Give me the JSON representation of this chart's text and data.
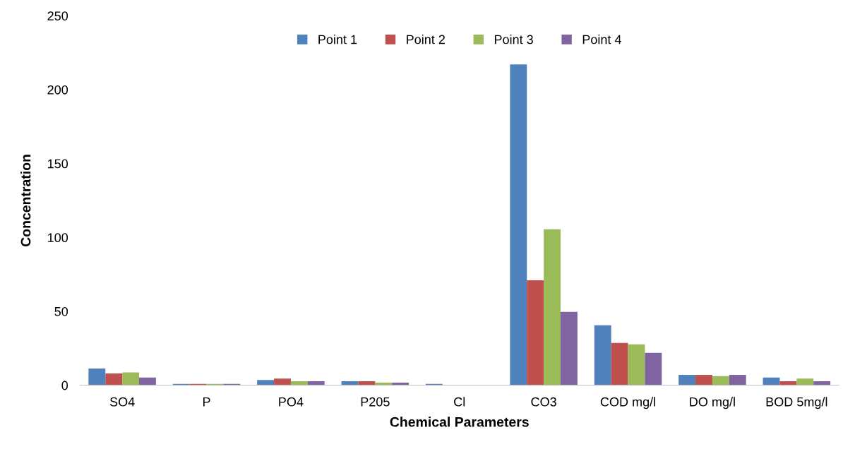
{
  "chart_data": {
    "type": "bar",
    "xlabel": "Chemical Parameters",
    "ylabel": "Concentration",
    "categories": [
      "SO4",
      "P",
      "PO4",
      "P205",
      "Cl",
      "CO3",
      "COD mg/l",
      "DO mg/l",
      "BOD 5mg/l"
    ],
    "series": [
      {
        "name": "Point 1",
        "color": "#4f81bd",
        "values": [
          11.3,
          0.9,
          3.6,
          2.7,
          0.9,
          217,
          40.6,
          7,
          5.2
        ]
      },
      {
        "name": "Point 2",
        "color": "#c0504d",
        "values": [
          8,
          0.9,
          4.5,
          2.7,
          0,
          71,
          28.6,
          7,
          2.7
        ]
      },
      {
        "name": "Point 3",
        "color": "#9bbb59",
        "values": [
          8.7,
          0.9,
          2.7,
          1.8,
          0,
          105.5,
          27.7,
          6.2,
          4.5
        ]
      },
      {
        "name": "Point 4",
        "color": "#8064a2",
        "values": [
          5.2,
          0.9,
          2.7,
          1.8,
          0,
          49.6,
          22,
          7,
          2.7
        ]
      }
    ],
    "ylim": [
      0,
      250
    ],
    "yticks": [
      0,
      50,
      100,
      150,
      200,
      250
    ],
    "grid": false,
    "legend": "top"
  }
}
